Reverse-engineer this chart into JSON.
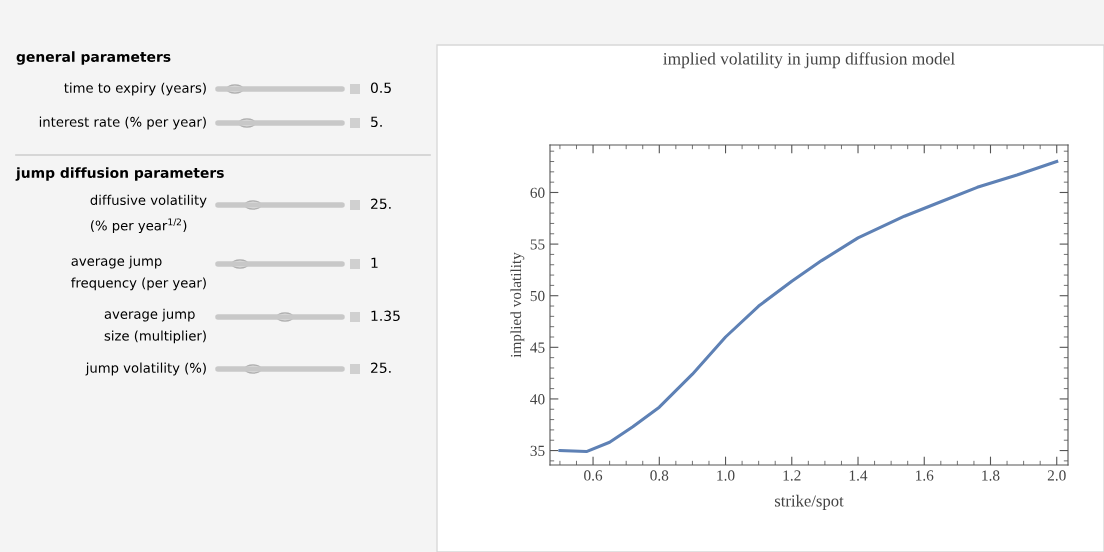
{
  "chart_data": [
    {
      "type": "other",
      "title": "general parameters",
      "annotations": [
        "time to expiry (years)",
        "0.5",
        "interest rate (% per year)",
        "5."
      ]
    },
    {
      "type": "other",
      "title": "jump diffusion parameters",
      "annotations": [
        "diffusive volatility\n(% per year$^{1/2}$)",
        "25.",
        "average jump\nfrequency (per year)",
        "1",
        "average jump\nsize (multiplier)",
        "1.35",
        "jump volatility (%)",
        "25."
      ]
    },
    {
      "type": "line",
      "title": "implied volatility in jump diffusion model",
      "xlabel": "strike/spot",
      "ylabel": "implied volatility",
      "x": [
        0.5,
        0.58,
        0.65,
        0.72,
        0.8,
        0.9,
        1.0,
        1.1,
        1.2,
        1.29,
        1.4,
        1.54,
        1.65,
        1.76,
        1.88,
        2.0
      ],
      "series": [
        {
          "color": "#5e81b5",
          "values": [
            35.0,
            34.9,
            35.8,
            37.3,
            39.2,
            42.4,
            46.0,
            49.0,
            51.4,
            53.4,
            55.6,
            57.7,
            59.1,
            60.5,
            61.7,
            63.0
          ]
        }
      ],
      "xlim": [
        0.47,
        2.034
      ],
      "ylim": [
        33.6,
        64.6
      ],
      "xticks": [
        {
          "value": 0.6,
          "label": "0.6"
        },
        {
          "value": 0.8,
          "label": "0.8"
        },
        {
          "value": 1.0,
          "label": "1.0"
        },
        {
          "value": 1.2,
          "label": "1.2"
        },
        {
          "value": 1.4,
          "label": "1.4"
        },
        {
          "value": 1.6,
          "label": "1.6"
        },
        {
          "value": 1.8,
          "label": "1.8"
        },
        {
          "value": 2.0,
          "label": "2.0"
        }
      ],
      "yticks": [
        35,
        40,
        45,
        50,
        55,
        60
      ],
      "grid": false,
      "legend": false,
      "marker": "none",
      "line_style": "solid"
    }
  ]
}
